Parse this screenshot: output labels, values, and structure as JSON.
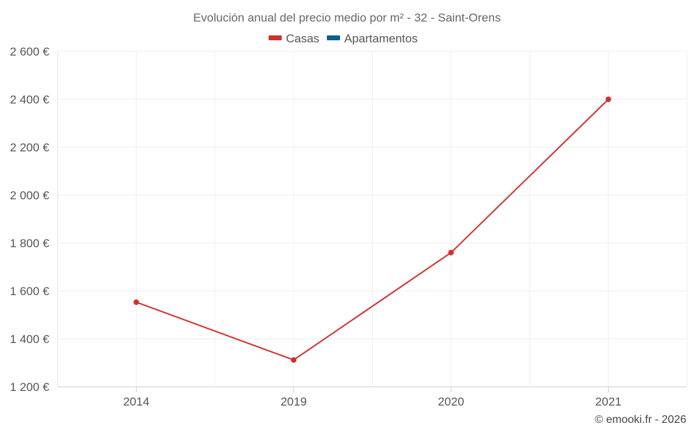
{
  "chart_data": {
    "type": "line",
    "title": "Evolución anual del precio medio por m² - 32 - Saint-Orens",
    "categories": [
      "2014",
      "2019",
      "2020",
      "2021"
    ],
    "series": [
      {
        "name": "Casas",
        "color": "#d32f2f",
        "values": [
          1553,
          1312,
          1760,
          2400
        ]
      },
      {
        "name": "Apartamentos",
        "color": "#0d5f91",
        "values": [
          null,
          null,
          null,
          null
        ]
      }
    ],
    "ylim": [
      1200,
      2600
    ],
    "yticks": [
      1200,
      1400,
      1600,
      1800,
      2000,
      2200,
      2400,
      2600
    ],
    "ytick_labels": [
      "1 200 €",
      "1 400 €",
      "1 600 €",
      "1 800 €",
      "2 000 €",
      "2 200 €",
      "2 400 €",
      "2 600 €"
    ],
    "xlabel": "",
    "ylabel": "",
    "grid": true,
    "legend_position": "top-center"
  },
  "credit": "© emooki.fr - 2026"
}
